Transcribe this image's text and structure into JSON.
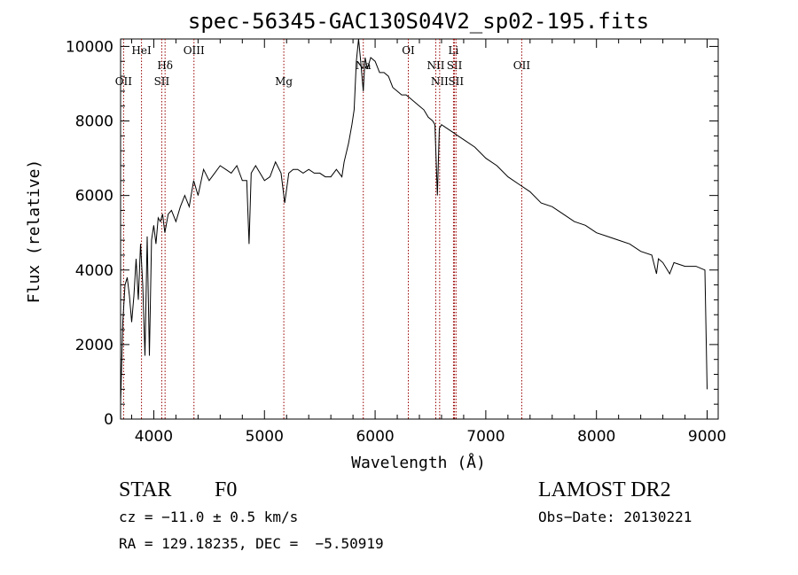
{
  "chart_data": {
    "type": "line",
    "title": "spec-56345-GAC130S04V2_sp02-195.fits",
    "xlabel": "Wavelength (Å)",
    "ylabel": "Flux (relative)",
    "xlim": [
      3700,
      9100
    ],
    "ylim": [
      0,
      10200
    ],
    "x_ticks": [
      4000,
      5000,
      6000,
      7000,
      8000,
      9000
    ],
    "y_ticks": [
      0,
      2000,
      4000,
      6000,
      8000,
      10000
    ],
    "grid": false,
    "line_color": "#000000",
    "marker_line_color": "#990000",
    "series": [
      {
        "x": [
          3700,
          3720,
          3740,
          3760,
          3780,
          3800,
          3820,
          3840,
          3860,
          3880,
          3900,
          3920,
          3940,
          3960,
          3980,
          4000,
          4020,
          4040,
          4060,
          4080,
          4100,
          4130,
          4160,
          4200,
          4240,
          4280,
          4320,
          4360,
          4400,
          4450,
          4500,
          4550,
          4600,
          4650,
          4700,
          4750,
          4800,
          4840,
          4861,
          4880,
          4920,
          4960,
          5000,
          5050,
          5100,
          5150,
          5183,
          5220,
          5260,
          5300,
          5350,
          5400,
          5450,
          5500,
          5550,
          5600,
          5650,
          5700,
          5720,
          5760,
          5790,
          5810,
          5830,
          5850,
          5870,
          5893,
          5910,
          5930,
          5960,
          6000,
          6040,
          6080,
          6120,
          6160,
          6200,
          6240,
          6280,
          6320,
          6360,
          6400,
          6440,
          6480,
          6520,
          6540,
          6563,
          6580,
          6600,
          6650,
          6700,
          6750,
          6800,
          6900,
          7000,
          7100,
          7200,
          7300,
          7400,
          7500,
          7600,
          7700,
          7800,
          7900,
          8000,
          8100,
          8200,
          8300,
          8400,
          8500,
          8542,
          8560,
          8600,
          8662,
          8700,
          8800,
          8900,
          8980,
          9000
        ],
        "y": [
          400,
          2600,
          3600,
          3800,
          3300,
          2600,
          3300,
          4300,
          3200,
          4700,
          3600,
          1700,
          4900,
          1700,
          4800,
          5200,
          4700,
          5400,
          5300,
          5500,
          5000,
          5500,
          5600,
          5300,
          5700,
          6000,
          5700,
          6400,
          6000,
          6700,
          6400,
          6600,
          6800,
          6700,
          6600,
          6800,
          6400,
          6400,
          4700,
          6600,
          6800,
          6600,
          6400,
          6500,
          6900,
          6600,
          5800,
          6600,
          6700,
          6700,
          6600,
          6700,
          6600,
          6600,
          6500,
          6500,
          6700,
          6500,
          6900,
          7400,
          7900,
          8300,
          9600,
          10200,
          9600,
          8800,
          9700,
          9400,
          9700,
          9600,
          9300,
          9300,
          9200,
          8900,
          8800,
          8700,
          8700,
          8600,
          8500,
          8400,
          8300,
          8100,
          8000,
          7900,
          6000,
          7800,
          7900,
          7800,
          7700,
          7600,
          7500,
          7300,
          7000,
          6800,
          6500,
          6300,
          6100,
          5800,
          5700,
          5500,
          5300,
          5200,
          5000,
          4900,
          4800,
          4700,
          4500,
          4400,
          3900,
          4300,
          4200,
          3900,
          4200,
          4100,
          4100,
          4000,
          800
        ]
      }
    ],
    "line_markers": [
      {
        "label": "OII",
        "x": 3727,
        "row": 3
      },
      {
        "label": "HeI",
        "x": 3889,
        "row": 1
      },
      {
        "label": "Hδ",
        "x": 4102,
        "row": 2
      },
      {
        "label": "SII",
        "x": 4072,
        "row": 3
      },
      {
        "label": "OIII",
        "x": 4363,
        "row": 1
      },
      {
        "label": "Mg",
        "x": 5175,
        "row": 3
      },
      {
        "label": "Na",
        "x": 5893,
        "row": 2
      },
      {
        "label": "OI",
        "x": 6300,
        "row": 1
      },
      {
        "label": "NII",
        "x": 6548,
        "row": 2
      },
      {
        "label": "NII",
        "x": 6583,
        "row": 3
      },
      {
        "label": "Li",
        "x": 6708,
        "row": 1
      },
      {
        "label": "SII",
        "x": 6717,
        "row": 2
      },
      {
        "label": "SII",
        "x": 6731,
        "row": 3
      },
      {
        "label": "OII",
        "x": 7325,
        "row": 2
      }
    ]
  },
  "info": {
    "obj_class": "STAR",
    "subclass": "F0",
    "survey": "LAMOST DR2",
    "cz": "cz = −11.0 ± 0.5 km/s",
    "obs_date": "Obs−Date: 20130221",
    "coords": "RA = 129.18235, DEC =  −5.50919"
  }
}
